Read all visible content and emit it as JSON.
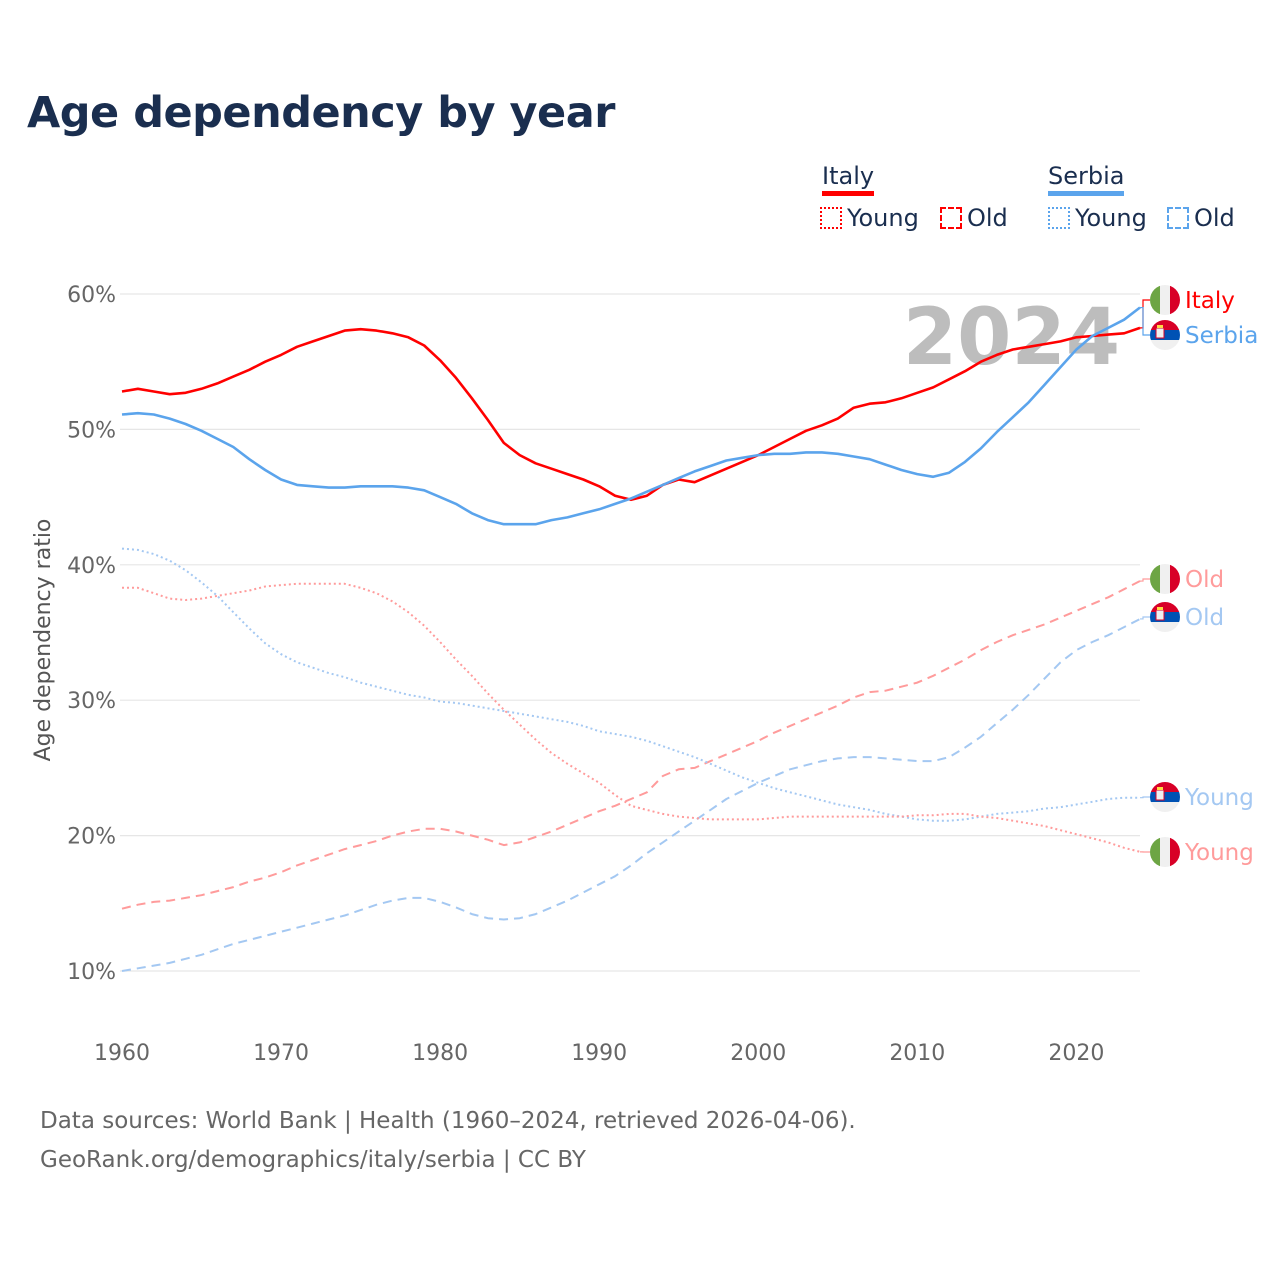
{
  "title": "Age dependency by year",
  "legend": {
    "countries": [
      {
        "name": "Italy",
        "color": "#ff0000",
        "items": [
          "Young",
          "Old"
        ]
      },
      {
        "name": "Serbia",
        "color": "#5ba4ec",
        "items": [
          "Young",
          "Old"
        ]
      }
    ]
  },
  "year_label": "2024",
  "footer": {
    "line1": "Data sources: World Bank | Health (1960–2024, retrieved 2026-04-06).",
    "line2": "GeoRank.org/demographics/italy/serbia | CC BY"
  },
  "chart_data": {
    "type": "line",
    "title": "Age dependency by year",
    "xlabel": "",
    "ylabel": "Age dependency ratio",
    "xlim": [
      1960,
      2024
    ],
    "ylim": [
      5,
      60
    ],
    "yticks": [
      10,
      20,
      30,
      40,
      50,
      60
    ],
    "ytick_labels": [
      "10%",
      "20%",
      "30%",
      "40%",
      "50%",
      "60%"
    ],
    "xticks": [
      1960,
      1970,
      1980,
      1990,
      2000,
      2010,
      2020
    ],
    "xtick_labels": [
      "1960",
      "1970",
      "1980",
      "1990",
      "2000",
      "2010",
      "2020"
    ],
    "grid": true,
    "x_start": 1960,
    "series": [
      {
        "name": "Italy",
        "label": "Italy",
        "flag": "italy",
        "style": "solid",
        "color": "#ff0000",
        "values": [
          52.8,
          53.0,
          52.8,
          52.6,
          52.7,
          53.0,
          53.4,
          53.9,
          54.4,
          55.0,
          55.5,
          56.1,
          56.5,
          56.9,
          57.3,
          57.4,
          57.3,
          57.1,
          56.8,
          56.2,
          55.1,
          53.8,
          52.3,
          50.7,
          49.0,
          48.1,
          47.5,
          47.1,
          46.7,
          46.3,
          45.8,
          45.1,
          44.8,
          45.1,
          45.9,
          46.3,
          46.1,
          46.6,
          47.1,
          47.6,
          48.1,
          48.7,
          49.3,
          49.9,
          50.3,
          50.8,
          51.6,
          51.9,
          52.0,
          52.3,
          52.7,
          53.1,
          53.7,
          54.3,
          55.0,
          55.5,
          55.9,
          56.1,
          56.3,
          56.5,
          56.8,
          56.9,
          57.0,
          57.1,
          57.5
        ]
      },
      {
        "name": "Serbia",
        "label": "Serbia",
        "flag": "serbia",
        "style": "solid",
        "color": "#5ba4ec",
        "values": [
          51.1,
          51.2,
          51.1,
          50.8,
          50.4,
          49.9,
          49.3,
          48.7,
          47.8,
          47.0,
          46.3,
          45.9,
          45.8,
          45.7,
          45.7,
          45.8,
          45.8,
          45.8,
          45.7,
          45.5,
          45.0,
          44.5,
          43.8,
          43.3,
          43.0,
          43.0,
          43.0,
          43.3,
          43.5,
          43.8,
          44.1,
          44.5,
          44.9,
          45.4,
          45.9,
          46.4,
          46.9,
          47.3,
          47.7,
          47.9,
          48.1,
          48.2,
          48.2,
          48.3,
          48.3,
          48.2,
          48.0,
          47.8,
          47.4,
          47.0,
          46.7,
          46.5,
          46.8,
          47.6,
          48.6,
          49.8,
          50.9,
          52.0,
          53.3,
          54.6,
          55.9,
          56.9,
          57.5,
          58.1,
          59.0
        ]
      },
      {
        "name": "Italy Old",
        "label": "Old",
        "flag": "italy",
        "style": "dashed",
        "color": "#ff9b9b",
        "values": [
          14.6,
          14.9,
          15.1,
          15.2,
          15.4,
          15.6,
          15.9,
          16.2,
          16.6,
          16.9,
          17.3,
          17.8,
          18.2,
          18.6,
          19.0,
          19.3,
          19.6,
          20.0,
          20.3,
          20.5,
          20.5,
          20.3,
          20.0,
          19.7,
          19.3,
          19.5,
          19.9,
          20.3,
          20.8,
          21.3,
          21.8,
          22.2,
          22.7,
          23.2,
          24.4,
          24.9,
          25.0,
          25.5,
          26.0,
          26.5,
          27.0,
          27.6,
          28.1,
          28.6,
          29.1,
          29.6,
          30.2,
          30.6,
          30.7,
          31.0,
          31.3,
          31.8,
          32.4,
          33.0,
          33.7,
          34.3,
          34.8,
          35.2,
          35.6,
          36.1,
          36.6,
          37.1,
          37.6,
          38.2,
          38.8
        ]
      },
      {
        "name": "Serbia Old",
        "label": "Old",
        "flag": "serbia",
        "style": "dashed",
        "color": "#a4c8f2",
        "values": [
          10.0,
          10.2,
          10.4,
          10.6,
          10.9,
          11.2,
          11.6,
          12.0,
          12.3,
          12.6,
          12.9,
          13.2,
          13.5,
          13.8,
          14.1,
          14.5,
          14.9,
          15.2,
          15.4,
          15.4,
          15.1,
          14.7,
          14.2,
          13.9,
          13.8,
          13.9,
          14.2,
          14.7,
          15.2,
          15.8,
          16.4,
          17.0,
          17.8,
          18.7,
          19.5,
          20.3,
          21.1,
          21.9,
          22.7,
          23.3,
          23.9,
          24.4,
          24.9,
          25.2,
          25.5,
          25.7,
          25.8,
          25.8,
          25.7,
          25.6,
          25.5,
          25.5,
          25.8,
          26.5,
          27.3,
          28.3,
          29.3,
          30.4,
          31.6,
          32.8,
          33.7,
          34.3,
          34.8,
          35.4,
          36.0
        ]
      },
      {
        "name": "Serbia Young",
        "label": "Young",
        "flag": "serbia",
        "style": "dotted",
        "color": "#a4c8f2",
        "values": [
          41.2,
          41.1,
          40.8,
          40.3,
          39.6,
          38.7,
          37.7,
          36.5,
          35.3,
          34.2,
          33.4,
          32.8,
          32.4,
          32.0,
          31.7,
          31.3,
          31.0,
          30.7,
          30.4,
          30.2,
          29.9,
          29.8,
          29.6,
          29.4,
          29.2,
          29.0,
          28.8,
          28.6,
          28.4,
          28.1,
          27.7,
          27.5,
          27.3,
          27.0,
          26.6,
          26.2,
          25.8,
          25.3,
          24.8,
          24.3,
          23.9,
          23.5,
          23.2,
          22.9,
          22.6,
          22.3,
          22.1,
          21.9,
          21.6,
          21.4,
          21.2,
          21.1,
          21.1,
          21.2,
          21.4,
          21.6,
          21.7,
          21.8,
          22.0,
          22.1,
          22.3,
          22.5,
          22.7,
          22.8,
          22.8
        ]
      },
      {
        "name": "Italy Young",
        "label": "Young",
        "flag": "italy",
        "style": "dotted",
        "color": "#ff9b9b",
        "values": [
          38.3,
          38.3,
          37.9,
          37.5,
          37.4,
          37.5,
          37.7,
          37.9,
          38.1,
          38.4,
          38.5,
          38.6,
          38.6,
          38.6,
          38.6,
          38.3,
          37.9,
          37.3,
          36.5,
          35.5,
          34.3,
          33.0,
          31.8,
          30.5,
          29.3,
          28.2,
          27.1,
          26.1,
          25.3,
          24.6,
          23.9,
          23.0,
          22.2,
          21.9,
          21.6,
          21.4,
          21.3,
          21.2,
          21.2,
          21.2,
          21.2,
          21.3,
          21.4,
          21.4,
          21.4,
          21.4,
          21.4,
          21.4,
          21.4,
          21.4,
          21.5,
          21.5,
          21.6,
          21.6,
          21.4,
          21.3,
          21.1,
          20.9,
          20.7,
          20.4,
          20.1,
          19.8,
          19.5,
          19.1,
          18.8
        ]
      }
    ]
  }
}
